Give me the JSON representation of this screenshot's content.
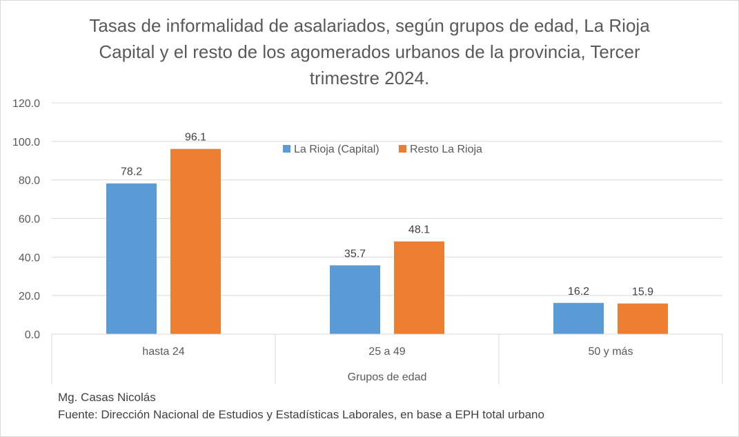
{
  "chart_data": {
    "type": "bar",
    "title": "Tasas de informalidad de asalariados, según grupos de edad, La Rioja Capital y el resto de los agomerados urbanos de la provincia, Tercer trimestre 2024.",
    "categories": [
      "hasta 24",
      "25 a 49",
      "50 y más"
    ],
    "series": [
      {
        "name": "La Rioja (Capital)",
        "values": [
          78.2,
          35.7,
          16.2
        ],
        "value_labels": [
          "78.2",
          "35.7",
          "16.2"
        ],
        "color": "#5b9bd5"
      },
      {
        "name": "Resto La Rioja",
        "values": [
          96.1,
          48.1,
          15.9
        ],
        "value_labels": [
          "96.1",
          "48.1",
          "15.9"
        ],
        "color": "#ed7d31"
      }
    ],
    "xlabel": "Grupos de edad",
    "ylabel": "",
    "ylim": [
      0,
      120
    ],
    "yticks": [
      "0.0",
      "20.0",
      "40.0",
      "60.0",
      "80.0",
      "100.0",
      "120.0"
    ],
    "grid": true,
    "legend_position": "top-center"
  },
  "footer": {
    "author": "Mg. Casas Nicolás",
    "source": "Fuente: Dirección Nacional de Estudios y Estadísticas Laborales, en base a EPH total urbano"
  }
}
